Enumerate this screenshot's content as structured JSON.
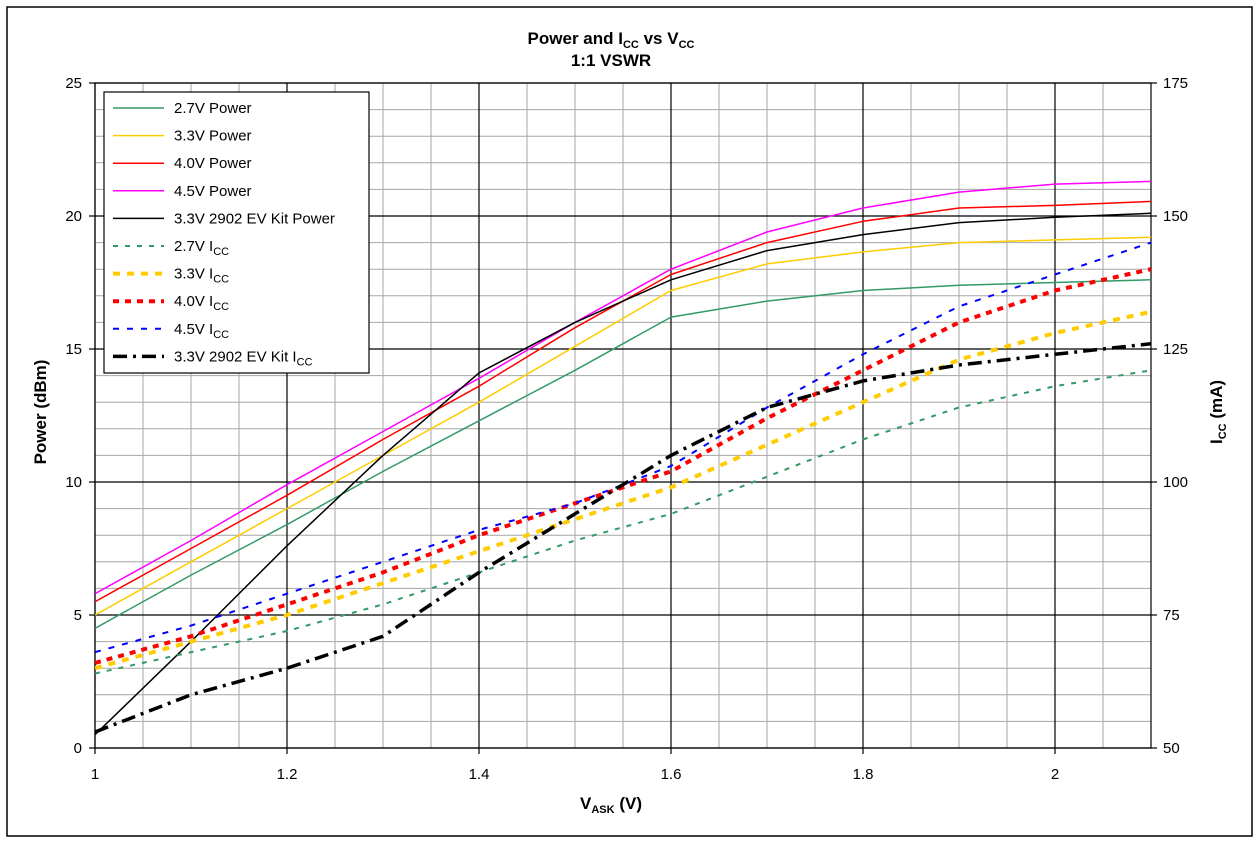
{
  "chart_data": {
    "type": "line",
    "title": "Power and I",
    "title_sub": "CC",
    "title_mid": " vs V",
    "title_sub2": "CC",
    "subtitle": "1:1 VSWR",
    "xlabel": "V",
    "xlabel_sub": "ASK",
    "xlabel_suffix": " (V)",
    "ylabel": "Power (dBm)",
    "y2label": "I",
    "y2label_sub": "CC",
    "y2label_suffix": " (mA)",
    "xlim": [
      1.0,
      2.1
    ],
    "ylim": [
      0,
      25
    ],
    "y2lim": [
      50,
      175
    ],
    "x_ticks": [
      1,
      1.2,
      1.4,
      1.6,
      1.8,
      2
    ],
    "x_tick_labels": [
      "1",
      "1.2",
      "1.4",
      "1.6",
      "1.8",
      "2"
    ],
    "y_ticks": [
      0,
      5,
      10,
      15,
      20,
      25
    ],
    "y_tick_labels": [
      "0",
      "5",
      "10",
      "15",
      "20",
      "25"
    ],
    "y2_ticks": [
      50,
      75,
      100,
      125,
      150,
      175
    ],
    "y2_tick_labels": [
      "50",
      "75",
      "100",
      "125",
      "150",
      "175"
    ],
    "grid": true,
    "legend_position": "top-left",
    "x": [
      1.0,
      1.1,
      1.2,
      1.3,
      1.4,
      1.5,
      1.6,
      1.7,
      1.8,
      1.9,
      2.0,
      2.1
    ],
    "series": [
      {
        "name": "2.7V Power",
        "axis": "left",
        "color": "#339966",
        "dash": "",
        "width": 1.5,
        "values": [
          4.5,
          6.5,
          8.4,
          10.4,
          12.3,
          14.2,
          16.2,
          16.8,
          17.2,
          17.4,
          17.5,
          17.6
        ]
      },
      {
        "name": "3.3V Power",
        "axis": "left",
        "color": "#ffcc00",
        "dash": "",
        "width": 1.5,
        "values": [
          5.0,
          7.0,
          9.0,
          11.0,
          13.0,
          15.1,
          17.2,
          18.2,
          18.65,
          19.0,
          19.1,
          19.2
        ]
      },
      {
        "name": "4.0V Power",
        "axis": "left",
        "color": "#ff0000",
        "dash": "",
        "width": 1.5,
        "values": [
          5.5,
          7.5,
          9.5,
          11.6,
          13.6,
          15.8,
          17.8,
          19.0,
          19.8,
          20.3,
          20.4,
          20.55
        ]
      },
      {
        "name": "4.5V Power",
        "axis": "left",
        "color": "#ff00ff",
        "dash": "",
        "width": 1.5,
        "values": [
          5.8,
          7.8,
          9.9,
          11.9,
          13.9,
          16.0,
          18.0,
          19.4,
          20.3,
          20.9,
          21.2,
          21.3
        ]
      },
      {
        "name": "3.3V 2902 EV Kit Power",
        "axis": "left",
        "color": "#000000",
        "dash": "",
        "width": 1.5,
        "values": [
          0.5,
          4.0,
          7.6,
          11.0,
          14.1,
          16.0,
          17.6,
          18.7,
          19.3,
          19.75,
          19.95,
          20.1
        ]
      },
      {
        "name": "2.7V I",
        "name_sub": "CC",
        "axis": "right",
        "color": "#339966",
        "dash": "5 7",
        "width": 2,
        "values": [
          64,
          68,
          72,
          77,
          83,
          89,
          94,
          101,
          108,
          114,
          118,
          121
        ]
      },
      {
        "name": "3.3V I",
        "name_sub": "CC",
        "axis": "right",
        "color": "#ffcc00",
        "dash": "7 7",
        "width": 4,
        "values": [
          65,
          70,
          75,
          81,
          87,
          93,
          99,
          107,
          115,
          123,
          128,
          132
        ]
      },
      {
        "name": "4.0V I",
        "name_sub": "CC",
        "axis": "right",
        "color": "#ff0000",
        "dash": "6 6",
        "width": 4,
        "values": [
          66,
          71,
          77,
          83,
          90,
          96,
          102,
          112,
          121,
          130,
          136,
          140
        ]
      },
      {
        "name": "4.5V I",
        "name_sub": "CC",
        "axis": "right",
        "color": "#0000ff",
        "dash": "6 8",
        "width": 2,
        "values": [
          68,
          73,
          79,
          85,
          91,
          96,
          103,
          114,
          124,
          133,
          139,
          145
        ]
      },
      {
        "name": "3.3V 2902 EV Kit I",
        "name_sub": "CC",
        "axis": "right",
        "color": "#000000",
        "dash": "14 6 3 6",
        "width": 3.5,
        "values": [
          53,
          60,
          65,
          71,
          83,
          94,
          105,
          114,
          119,
          122,
          124,
          126
        ]
      }
    ]
  }
}
